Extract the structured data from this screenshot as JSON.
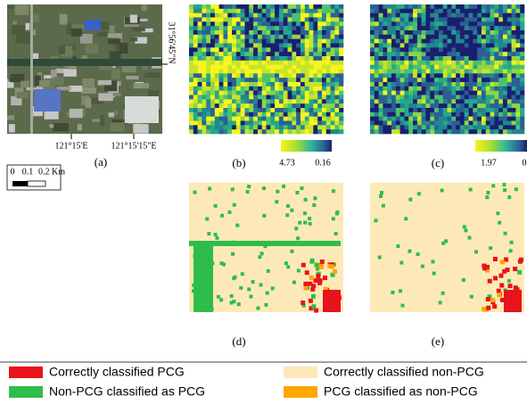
{
  "panels": [
    {
      "label": "(a)"
    },
    {
      "label": "(b)"
    },
    {
      "label": "(c)"
    },
    {
      "label": "(d)"
    },
    {
      "label": "(e)"
    }
  ],
  "panel_a": {
    "x_ticks": [
      "121°15'E",
      "121°15'15\"E"
    ],
    "y_tick": "31°56'45\"N",
    "scale_bar": [
      "0",
      "0.1",
      "0.2 Km"
    ]
  },
  "colorbars": [
    {
      "max": "4.73",
      "min": "0.16"
    },
    {
      "max": "1.97",
      "min": "0"
    }
  ],
  "legend": [
    {
      "label": "Correctly classified PCG",
      "color": "#e8131b"
    },
    {
      "label": "Correctly classified non-PCG",
      "color": "#fde9b8"
    },
    {
      "label": "Non-PCG classified as PCG",
      "color": "#2ebd4b"
    },
    {
      "label": "PCG classified as non-PCG",
      "color": "#ffa600"
    }
  ]
}
